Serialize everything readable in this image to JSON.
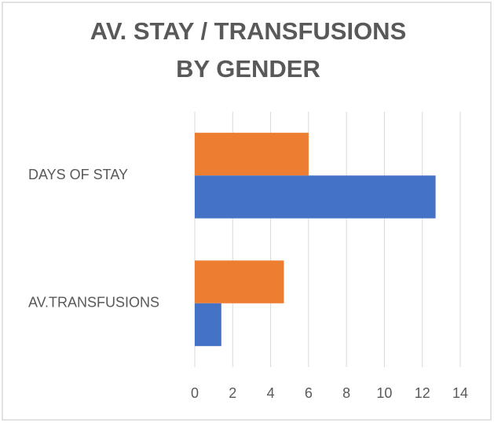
{
  "chart_data": {
    "type": "hbar",
    "title": [
      "AV. STAY  / TRANSFUSIONS",
      "BY GENDER"
    ],
    "categories": [
      "DAYS OF STAY",
      "AV.TRANSFUSIONS"
    ],
    "series": [
      {
        "color": "#ed7d31",
        "values": [
          6.0,
          4.7
        ]
      },
      {
        "color": "#4472c4",
        "values": [
          12.7,
          1.4
        ]
      }
    ],
    "xlim": [
      0,
      14
    ],
    "xticks": [
      0,
      2,
      4,
      6,
      8,
      10,
      12,
      14
    ],
    "grid": true
  }
}
